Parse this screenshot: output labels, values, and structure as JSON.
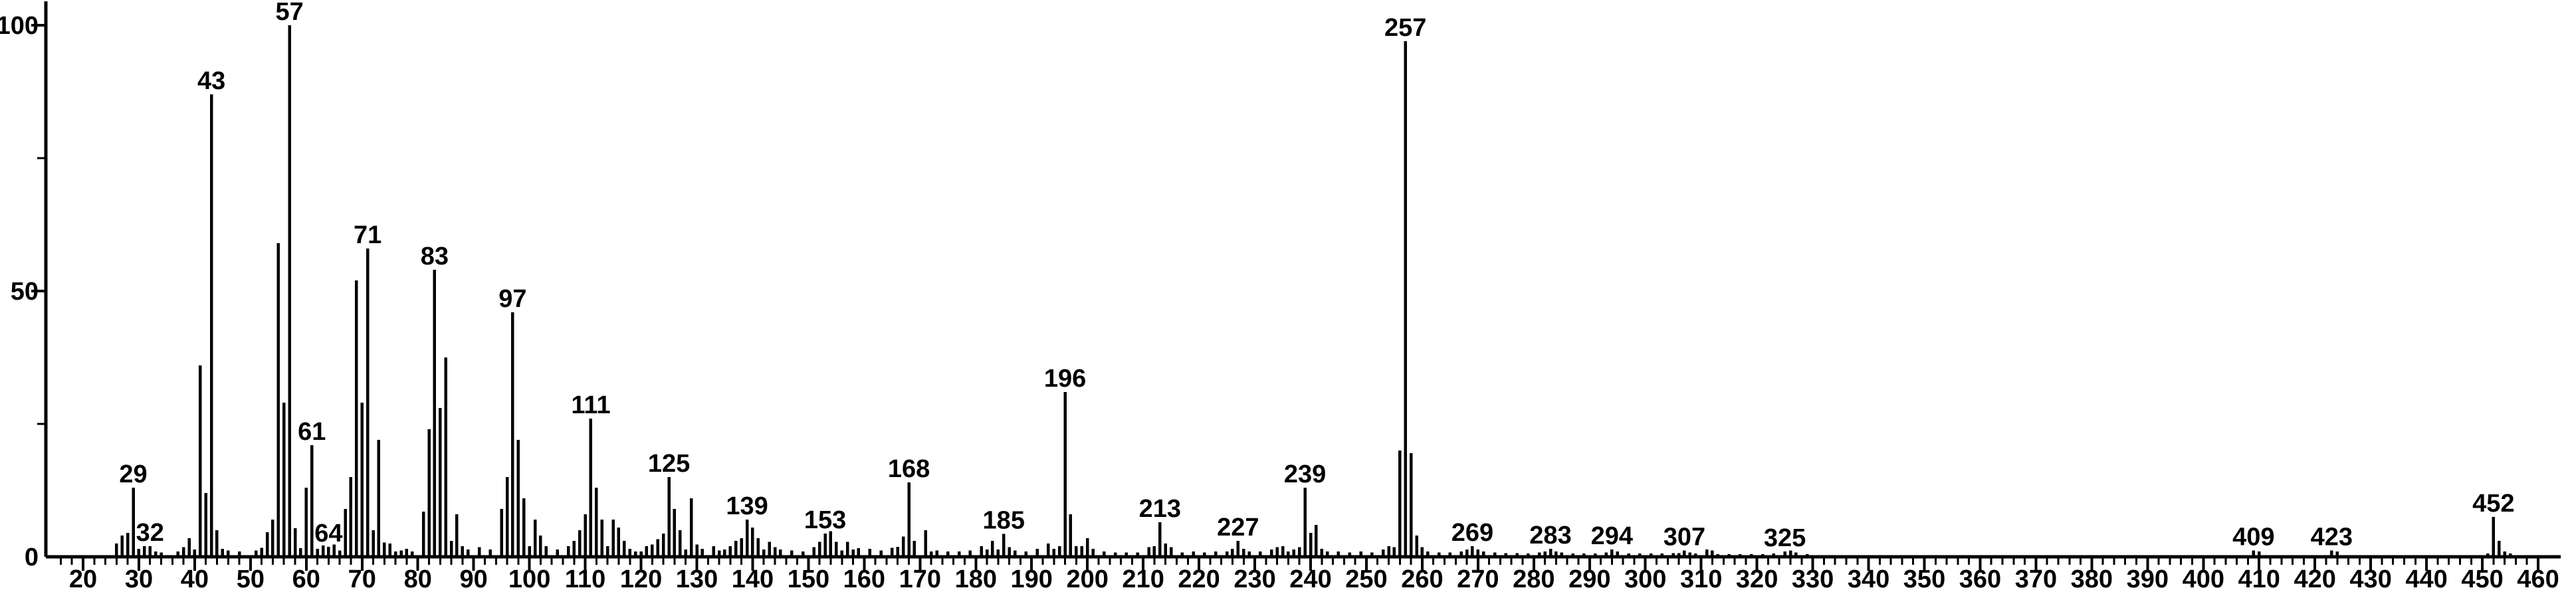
{
  "chart_data": {
    "type": "bar",
    "subtype": "mass-spectrum",
    "title": "",
    "xlabel": "",
    "ylabel": "",
    "background_color": "#ffffff",
    "bar_color": "#000000",
    "axis_color": "#000000",
    "x_axis": {
      "min": 20,
      "max": 460,
      "major_tick_step": 10,
      "minor_tick_step": 2,
      "tick_labels": [
        "20",
        "30",
        "40",
        "50",
        "60",
        "70",
        "80",
        "90",
        "100",
        "110",
        "120",
        "130",
        "140",
        "150",
        "160",
        "170",
        "180",
        "190",
        "200",
        "210",
        "220",
        "230",
        "240",
        "250",
        "260",
        "270",
        "280",
        "290",
        "300",
        "310",
        "320",
        "330",
        "340",
        "350",
        "360",
        "370",
        "380",
        "390",
        "400",
        "410",
        "420",
        "430",
        "440",
        "450",
        "460"
      ]
    },
    "y_axis": {
      "min": 0,
      "max": 100,
      "major_ticks": [
        50,
        100
      ],
      "minor_ticks": [
        25,
        75
      ],
      "tick_labels": [
        "0",
        "50",
        "100"
      ],
      "grid": false
    },
    "peaks": [
      [
        26,
        2.5
      ],
      [
        27,
        4
      ],
      [
        28,
        4.5
      ],
      [
        29,
        13
      ],
      [
        30,
        1.5
      ],
      [
        31,
        2
      ],
      [
        32,
        2
      ],
      [
        33,
        1
      ],
      [
        34,
        0.8
      ],
      [
        37,
        1
      ],
      [
        38,
        1.8
      ],
      [
        39,
        3.5
      ],
      [
        40,
        1.4
      ],
      [
        41,
        36
      ],
      [
        42,
        12
      ],
      [
        43,
        87
      ],
      [
        44,
        5
      ],
      [
        45,
        1.5
      ],
      [
        46,
        1.2
      ],
      [
        48,
        1
      ],
      [
        51,
        1.2
      ],
      [
        52,
        1.7
      ],
      [
        53,
        4.6
      ],
      [
        54,
        7
      ],
      [
        55,
        59
      ],
      [
        56,
        29
      ],
      [
        57,
        100
      ],
      [
        58,
        5.4
      ],
      [
        59,
        1.6
      ],
      [
        60,
        13
      ],
      [
        61,
        21
      ],
      [
        62,
        1.5
      ],
      [
        63,
        2.1
      ],
      [
        64,
        1.9
      ],
      [
        65,
        2.3
      ],
      [
        66,
        1.2
      ],
      [
        67,
        9
      ],
      [
        68,
        15
      ],
      [
        69,
        52
      ],
      [
        70,
        29
      ],
      [
        71,
        58
      ],
      [
        72,
        5
      ],
      [
        73,
        22
      ],
      [
        74,
        2.7
      ],
      [
        75,
        2.5
      ],
      [
        76,
        1
      ],
      [
        77,
        1.2
      ],
      [
        78,
        1.5
      ],
      [
        79,
        1
      ],
      [
        81,
        8.5
      ],
      [
        82,
        24
      ],
      [
        83,
        54
      ],
      [
        84,
        28
      ],
      [
        85,
        37.5
      ],
      [
        86,
        3
      ],
      [
        87,
        8
      ],
      [
        88,
        2
      ],
      [
        89,
        1.4
      ],
      [
        91,
        1.8
      ],
      [
        93,
        1.4
      ],
      [
        95,
        9
      ],
      [
        96,
        15
      ],
      [
        97,
        46
      ],
      [
        98,
        22
      ],
      [
        99,
        11
      ],
      [
        100,
        2
      ],
      [
        101,
        7
      ],
      [
        102,
        4
      ],
      [
        103,
        2
      ],
      [
        105,
        1.4
      ],
      [
        107,
        2
      ],
      [
        108,
        3
      ],
      [
        109,
        5
      ],
      [
        110,
        8
      ],
      [
        111,
        26
      ],
      [
        112,
        13
      ],
      [
        113,
        7
      ],
      [
        114,
        2
      ],
      [
        115,
        7
      ],
      [
        116,
        5.5
      ],
      [
        117,
        3
      ],
      [
        118,
        1.5
      ],
      [
        119,
        1
      ],
      [
        120,
        1
      ],
      [
        121,
        2
      ],
      [
        122,
        2.3
      ],
      [
        123,
        3.3
      ],
      [
        124,
        4.4
      ],
      [
        125,
        15
      ],
      [
        126,
        9
      ],
      [
        127,
        5
      ],
      [
        128,
        1.4
      ],
      [
        129,
        11
      ],
      [
        130,
        2.3
      ],
      [
        131,
        1.5
      ],
      [
        133,
        2
      ],
      [
        134,
        1.2
      ],
      [
        135,
        1.4
      ],
      [
        136,
        2
      ],
      [
        137,
        3
      ],
      [
        138,
        3.5
      ],
      [
        139,
        7
      ],
      [
        140,
        5.5
      ],
      [
        141,
        3.5
      ],
      [
        142,
        1.4
      ],
      [
        143,
        2.8
      ],
      [
        144,
        1.8
      ],
      [
        145,
        1.4
      ],
      [
        147,
        1.2
      ],
      [
        149,
        1
      ],
      [
        151,
        1.8
      ],
      [
        152,
        2.8
      ],
      [
        153,
        4.4
      ],
      [
        154,
        4.8
      ],
      [
        155,
        2.8
      ],
      [
        156,
        1.2
      ],
      [
        157,
        2.8
      ],
      [
        158,
        1.4
      ],
      [
        159,
        1.6
      ],
      [
        161,
        1.5
      ],
      [
        163,
        1.2
      ],
      [
        165,
        1.7
      ],
      [
        166,
        1.9
      ],
      [
        167,
        3.8
      ],
      [
        168,
        14
      ],
      [
        169,
        3
      ],
      [
        171,
        5
      ],
      [
        172,
        1
      ],
      [
        173,
        1.2
      ],
      [
        175,
        1
      ],
      [
        177,
        1
      ],
      [
        179,
        1.2
      ],
      [
        181,
        2
      ],
      [
        182,
        1.4
      ],
      [
        183,
        3
      ],
      [
        184,
        1.4
      ],
      [
        185,
        4.3
      ],
      [
        186,
        1.8
      ],
      [
        187,
        1.2
      ],
      [
        189,
        1
      ],
      [
        191,
        1.5
      ],
      [
        193,
        2.5
      ],
      [
        194,
        1.5
      ],
      [
        195,
        2
      ],
      [
        196,
        31
      ],
      [
        197,
        8
      ],
      [
        198,
        2
      ],
      [
        199,
        2
      ],
      [
        200,
        3.5
      ],
      [
        201,
        1.5
      ],
      [
        203,
        1
      ],
      [
        205,
        0.8
      ],
      [
        207,
        0.8
      ],
      [
        209,
        0.8
      ],
      [
        211,
        1.8
      ],
      [
        212,
        2
      ],
      [
        213,
        6.5
      ],
      [
        214,
        2.5
      ],
      [
        215,
        1.8
      ],
      [
        217,
        0.8
      ],
      [
        219,
        1
      ],
      [
        221,
        0.8
      ],
      [
        223,
        1
      ],
      [
        225,
        1
      ],
      [
        226,
        1.5
      ],
      [
        227,
        3
      ],
      [
        228,
        1.5
      ],
      [
        229,
        1
      ],
      [
        231,
        1
      ],
      [
        233,
        1.4
      ],
      [
        234,
        1.8
      ],
      [
        235,
        2
      ],
      [
        236,
        1
      ],
      [
        237,
        1.4
      ],
      [
        238,
        1.8
      ],
      [
        239,
        13
      ],
      [
        240,
        4.5
      ],
      [
        241,
        6
      ],
      [
        242,
        1.5
      ],
      [
        243,
        1
      ],
      [
        245,
        1
      ],
      [
        247,
        0.8
      ],
      [
        249,
        1
      ],
      [
        251,
        0.8
      ],
      [
        253,
        1.4
      ],
      [
        254,
        2
      ],
      [
        255,
        1.8
      ],
      [
        256,
        20
      ],
      [
        257,
        97
      ],
      [
        258,
        19.5
      ],
      [
        259,
        4
      ],
      [
        260,
        1.8
      ],
      [
        261,
        1
      ],
      [
        263,
        0.8
      ],
      [
        265,
        0.8
      ],
      [
        267,
        1
      ],
      [
        268,
        1.4
      ],
      [
        269,
        2
      ],
      [
        270,
        1.4
      ],
      [
        271,
        1
      ],
      [
        273,
        0.8
      ],
      [
        275,
        0.7
      ],
      [
        277,
        0.7
      ],
      [
        279,
        0.6
      ],
      [
        281,
        0.8
      ],
      [
        282,
        1
      ],
      [
        283,
        1.5
      ],
      [
        284,
        1
      ],
      [
        285,
        0.8
      ],
      [
        287,
        0.6
      ],
      [
        289,
        0.6
      ],
      [
        291,
        0.6
      ],
      [
        293,
        0.8
      ],
      [
        294,
        1.4
      ],
      [
        295,
        1
      ],
      [
        297,
        0.6
      ],
      [
        299,
        0.6
      ],
      [
        301,
        0.6
      ],
      [
        303,
        0.6
      ],
      [
        305,
        0.7
      ],
      [
        306,
        0.7
      ],
      [
        307,
        1.2
      ],
      [
        308,
        0.8
      ],
      [
        309,
        0.6
      ],
      [
        311,
        1.4
      ],
      [
        312,
        1.2
      ],
      [
        313,
        0.5
      ],
      [
        315,
        0.5
      ],
      [
        317,
        0.5
      ],
      [
        319,
        0.5
      ],
      [
        321,
        0.5
      ],
      [
        323,
        0.6
      ],
      [
        325,
        1
      ],
      [
        326,
        1.2
      ],
      [
        327,
        0.8
      ],
      [
        329,
        0.5
      ],
      [
        409,
        1.2
      ],
      [
        410,
        1
      ],
      [
        423,
        1.2
      ],
      [
        424,
        1
      ],
      [
        451,
        0.6
      ],
      [
        452,
        7.5
      ],
      [
        453,
        3
      ],
      [
        454,
        1
      ],
      [
        455,
        0.6
      ]
    ],
    "labeled_peaks": [
      "29",
      "32",
      "43",
      "57",
      "61",
      "64",
      "71",
      "83",
      "97",
      "111",
      "125",
      "139",
      "153",
      "168",
      "185",
      "196",
      "213",
      "227",
      "239",
      "257",
      "269",
      "283",
      "294",
      "307",
      "325",
      "409",
      "423",
      "452"
    ]
  }
}
